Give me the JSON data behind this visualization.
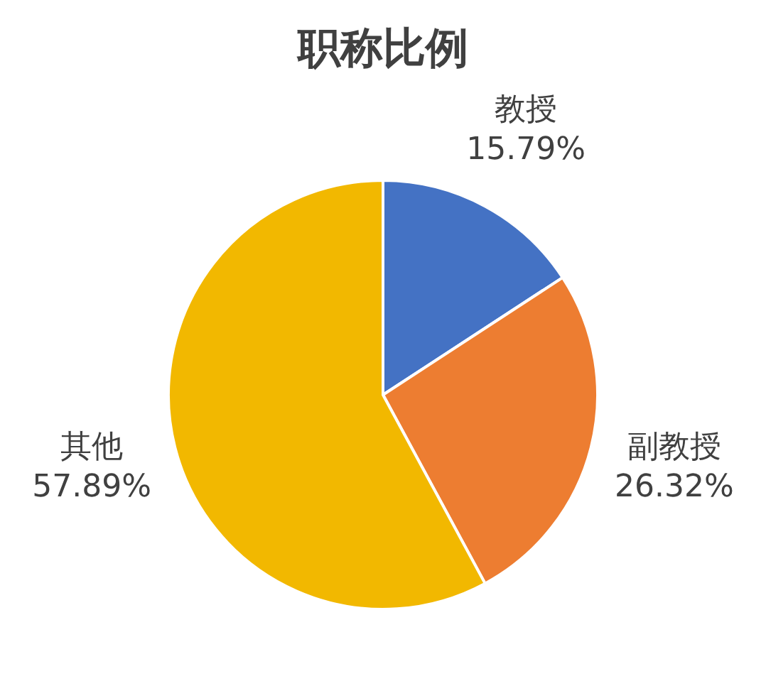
{
  "chart_data": {
    "type": "pie",
    "title": "职称比例",
    "categories": [
      "教授",
      "副教授",
      "其他"
    ],
    "values": [
      15.79,
      26.32,
      57.89
    ],
    "colors": [
      "#4472c4",
      "#ed7d31",
      "#f2b800"
    ],
    "value_labels": [
      "15.79%",
      "26.32%",
      "57.89%"
    ],
    "legend": false
  }
}
